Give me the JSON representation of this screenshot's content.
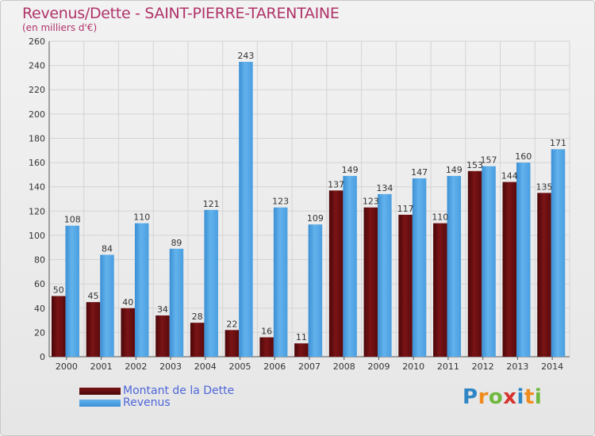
{
  "header": {
    "title": "Revenus/Dette - SAINT-PIERRE-TARENTAINE",
    "subtitle": "(en milliers d'€)"
  },
  "legend": {
    "debt_label": "Montant de la Dette",
    "revenue_label": "Revenus"
  },
  "logo": {
    "letters": [
      "P",
      "r",
      "o",
      "x",
      "i",
      "t",
      "i"
    ]
  },
  "colors": {
    "debt": "#6e1012",
    "revenue": "#5aa9e6",
    "title": "#b0336a",
    "legend_text": "#4d66d9"
  },
  "chart_data": {
    "type": "bar",
    "title": "Revenus/Dette - SAINT-PIERRE-TARENTAINE",
    "subtitle": "(en milliers d'€)",
    "xlabel": "",
    "ylabel": "",
    "categories": [
      "2000",
      "2001",
      "2002",
      "2003",
      "2004",
      "2005",
      "2006",
      "2007",
      "2008",
      "2009",
      "2010",
      "2011",
      "2012",
      "2013",
      "2014"
    ],
    "series": [
      {
        "name": "Montant de la Dette",
        "color": "#6e1012",
        "values": [
          50,
          45,
          40,
          34,
          28,
          22,
          16,
          11,
          137,
          123,
          117,
          110,
          153,
          144,
          135
        ]
      },
      {
        "name": "Revenus",
        "color": "#5aa9e6",
        "values": [
          108,
          84,
          110,
          89,
          121,
          243,
          123,
          109,
          149,
          134,
          147,
          149,
          157,
          160,
          171
        ]
      }
    ],
    "ylim": [
      0,
      260
    ],
    "yticks": [
      0,
      20,
      40,
      60,
      80,
      100,
      120,
      140,
      160,
      180,
      200,
      220,
      240,
      260
    ],
    "grid": true,
    "legend_position": "bottom-left"
  }
}
